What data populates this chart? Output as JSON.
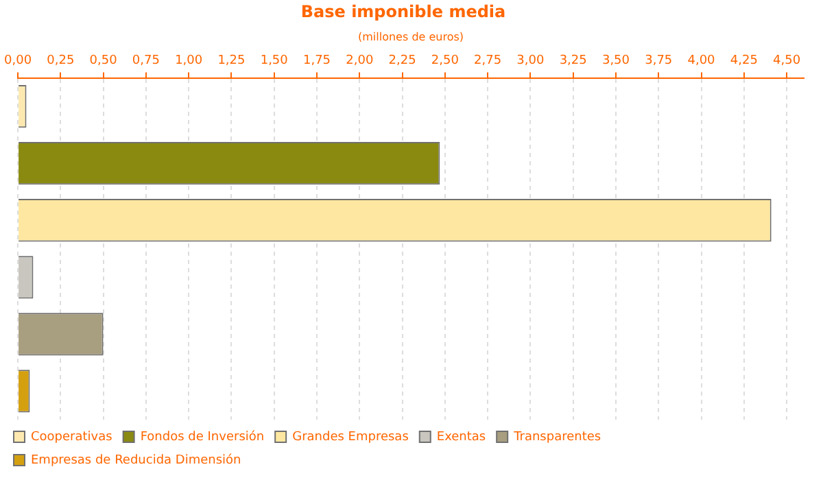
{
  "chart_data": {
    "type": "bar",
    "orientation": "horizontal",
    "title": "Base imponible media",
    "xlabel": "(millones de euros)",
    "categories": [
      null
    ],
    "series": [
      {
        "name": "Cooperativas",
        "color": "#fde9b0",
        "values": [
          0.05
        ]
      },
      {
        "name": "Fondos de Inversión",
        "color": "#8a8a10",
        "values": [
          2.47
        ]
      },
      {
        "name": "Grandes Empresas",
        "color": "#fee7a0",
        "values": [
          4.41
        ]
      },
      {
        "name": "Exentas",
        "color": "#c8c6be",
        "values": [
          0.09
        ]
      },
      {
        "name": "Transparentes",
        "color": "#a89e80",
        "values": [
          0.5
        ]
      },
      {
        "name": "Empresas de Reducida Dimensión",
        "color": "#d4a010",
        "values": [
          0.07
        ]
      }
    ],
    "xlim": [
      0,
      4.6
    ],
    "xticks": [
      {
        "value": 0,
        "label": "0,00"
      },
      {
        "value": 0.25,
        "label": "0,25"
      },
      {
        "value": 0.5,
        "label": "0,50"
      },
      {
        "value": 0.75,
        "label": "0,75"
      },
      {
        "value": 1,
        "label": "1,00"
      },
      {
        "value": 1.25,
        "label": "1,25"
      },
      {
        "value": 1.5,
        "label": "1,50"
      },
      {
        "value": 1.75,
        "label": "1,75"
      },
      {
        "value": 2,
        "label": "2,00"
      },
      {
        "value": 2.25,
        "label": "2,25"
      },
      {
        "value": 2.5,
        "label": "2,50"
      },
      {
        "value": 2.75,
        "label": "2,75"
      },
      {
        "value": 3,
        "label": "3,00"
      },
      {
        "value": 3.25,
        "label": "3,25"
      },
      {
        "value": 3.5,
        "label": "3,50"
      },
      {
        "value": 3.75,
        "label": "3,75"
      },
      {
        "value": 4,
        "label": "4,00"
      },
      {
        "value": 4.25,
        "label": "4,25"
      },
      {
        "value": 4.5,
        "label": "4,50"
      }
    ],
    "grid": "x",
    "legend": "bottom left",
    "tick_labels": "x"
  }
}
